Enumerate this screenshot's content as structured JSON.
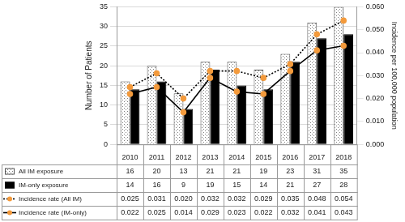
{
  "chart_data": {
    "type": "bar",
    "categories": [
      "2010",
      "2011",
      "2012",
      "2013",
      "2014",
      "2015",
      "2016",
      "2017",
      "2018"
    ],
    "y_label": "Number of Patients",
    "y2_label": "Incidence per 100,000 population",
    "ylim": [
      0,
      35
    ],
    "yticks": [
      0,
      5,
      10,
      15,
      20,
      25,
      30,
      35
    ],
    "y2lim": [
      0,
      0.06
    ],
    "y2ticks": [
      {
        "value": 0,
        "label": "0.000"
      },
      {
        "value": 0.01,
        "label": "0.010"
      },
      {
        "value": 0.02,
        "label": "0.020"
      },
      {
        "value": 0.03,
        "label": "0.030"
      },
      {
        "value": 0.04,
        "label": "0.040"
      },
      {
        "value": 0.05,
        "label": "0.050"
      },
      {
        "value": 0.06,
        "label": "0.060"
      }
    ],
    "grid": true,
    "series": [
      {
        "name": "All IM exposure",
        "type": "bar",
        "color": "#7f7f7f",
        "values": [
          16,
          20,
          13,
          21,
          21,
          19,
          23,
          31,
          35
        ]
      },
      {
        "name": "IM-only exposure",
        "type": "bar",
        "color": "#000000",
        "values": [
          14,
          16,
          9,
          19,
          15,
          14,
          21,
          27,
          28
        ]
      },
      {
        "name": "Incidence rate (All IM)",
        "type": "line",
        "axis": "y2",
        "color": "#000000",
        "line_style": "dotted",
        "marker": "circle",
        "values": [
          0.025,
          0.031,
          0.02,
          0.032,
          0.032,
          0.029,
          0.035,
          0.048,
          0.054
        ],
        "value_labels": [
          "0.025",
          "0.031",
          "0.020",
          "0.032",
          "0.032",
          "0.029",
          "0.035",
          "0.048",
          "0.054"
        ]
      },
      {
        "name": "Incidence rate (IM-only)",
        "type": "line",
        "axis": "y2",
        "color": "#000000",
        "line_style": "solid",
        "marker": "circle",
        "values": [
          0.022,
          0.025,
          0.014,
          0.029,
          0.023,
          0.022,
          0.032,
          0.041,
          0.043
        ],
        "value_labels": [
          "0.022",
          "0.025",
          "0.014",
          "0.029",
          "0.023",
          "0.022",
          "0.032",
          "0.041",
          "0.043"
        ]
      }
    ]
  }
}
